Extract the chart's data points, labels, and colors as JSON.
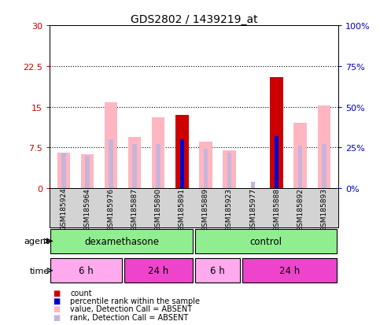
{
  "title": "GDS2802 / 1439219_at",
  "samples": [
    "GSM185924",
    "GSM185964",
    "GSM185976",
    "GSM185887",
    "GSM185890",
    "GSM185891",
    "GSM185889",
    "GSM185923",
    "GSM185977",
    "GSM185888",
    "GSM185892",
    "GSM185893"
  ],
  "ylim_left": [
    0,
    30
  ],
  "ylim_right": [
    0,
    100
  ],
  "yticks_left": [
    0,
    7.5,
    15,
    22.5,
    30
  ],
  "yticks_right": [
    0,
    25,
    50,
    75,
    100
  ],
  "ytick_labels_left": [
    "0",
    "7.5",
    "15",
    "22.5",
    "30"
  ],
  "ytick_labels_right": [
    "0%",
    "25%",
    "50%",
    "75%",
    "100%"
  ],
  "value_bars": [
    6.5,
    6.2,
    15.8,
    9.5,
    13.0,
    13.5,
    8.5,
    7.0,
    0.0,
    20.5,
    12.0,
    15.2
  ],
  "count_bars": [
    0.0,
    0.0,
    0.0,
    0.0,
    0.0,
    13.5,
    0.0,
    0.0,
    0.0,
    20.5,
    0.0,
    0.0
  ],
  "rank_bars_pct": [
    22.0,
    20.0,
    30.0,
    27.0,
    27.0,
    30.0,
    24.0,
    22.0,
    4.0,
    32.0,
    26.0,
    27.0
  ],
  "pct_rank_bars": [
    0.0,
    0.0,
    0.0,
    0.0,
    0.0,
    30.0,
    0.0,
    0.0,
    0.0,
    32.0,
    0.0,
    0.0
  ],
  "bar_color_value": "#ffb6c1",
  "bar_color_count": "#cc0000",
  "bar_color_rank": "#c8b4d8",
  "bar_color_pct_rank": "#0000cc",
  "legend_items": [
    {
      "label": "count",
      "color": "#cc0000"
    },
    {
      "label": "percentile rank within the sample",
      "color": "#0000cc"
    },
    {
      "label": "value, Detection Call = ABSENT",
      "color": "#ffb6c1"
    },
    {
      "label": "rank, Detection Call = ABSENT",
      "color": "#c8b4d8"
    }
  ],
  "label_color_left": "#cc0000",
  "label_color_right": "#0000cc",
  "plot_bg": "#ffffff",
  "tick_area_bg": "#d3d3d3",
  "agent_color": "#90ee90",
  "time_color_6h": "#ffaaee",
  "time_color_24h": "#ee44cc"
}
